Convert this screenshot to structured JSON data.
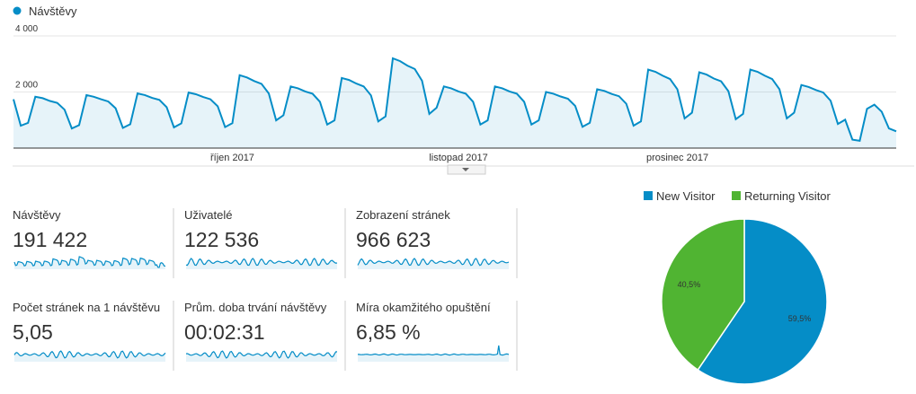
{
  "chart_data": [
    {
      "type": "line",
      "series": [
        {
          "name": "Návštěvy",
          "color": "#058dc7",
          "values": [
            1740,
            800,
            900,
            1830,
            1780,
            1680,
            1610,
            1370,
            700,
            820,
            1890,
            1830,
            1740,
            1660,
            1420,
            720,
            850,
            1950,
            1890,
            1790,
            1720,
            1460,
            740,
            880,
            1980,
            1920,
            1820,
            1740,
            1490,
            750,
            890,
            2600,
            2520,
            2390,
            2290,
            1950,
            990,
            1170,
            2200,
            2130,
            2020,
            1940,
            1650,
            840,
            990,
            2500,
            2430,
            2300,
            2200,
            1880,
            950,
            1130,
            3200,
            3100,
            2940,
            2820,
            2400,
            1220,
            1440,
            2200,
            2130,
            2020,
            1940,
            1650,
            840,
            990,
            2200,
            2130,
            2020,
            1940,
            1650,
            840,
            990,
            2000,
            1940,
            1840,
            1760,
            1500,
            760,
            900,
            2100,
            2040,
            1930,
            1850,
            1580,
            800,
            950,
            2800,
            2720,
            2580,
            2460,
            2100,
            1060,
            1260,
            2700,
            2620,
            2480,
            2380,
            2030,
            1030,
            1220,
            2800,
            2720,
            2580,
            2460,
            2100,
            1060,
            1260,
            2250,
            2180,
            2070,
            1980,
            1690,
            860,
            1010,
            300,
            260,
            1400,
            1550,
            1300,
            700,
            600
          ]
        }
      ],
      "categories": [
        null,
        null,
        null,
        null,
        null,
        null,
        null,
        null,
        null,
        null,
        null,
        null,
        null,
        null,
        null,
        null,
        null,
        null,
        null,
        null,
        null,
        null,
        null,
        null,
        null,
        null,
        null,
        null,
        null,
        null,
        "říjen 2017",
        null,
        null,
        null,
        null,
        null,
        null,
        null,
        null,
        null,
        null,
        null,
        null,
        null,
        null,
        null,
        null,
        null,
        null,
        null,
        null,
        null,
        null,
        null,
        null,
        null,
        null,
        null,
        null,
        null,
        null,
        "listopad 2017",
        null,
        null,
        null,
        null,
        null,
        null,
        null,
        null,
        null,
        null,
        null,
        null,
        null,
        null,
        null,
        null,
        null,
        null,
        null,
        null,
        null,
        null,
        null,
        null,
        null,
        null,
        null,
        null,
        null,
        "prosinec 2017",
        null,
        null,
        null,
        null,
        null,
        null,
        null,
        null,
        null,
        null,
        null,
        null,
        null,
        null,
        null,
        null,
        null,
        null,
        null,
        null,
        null,
        null,
        null,
        null,
        null,
        null,
        null,
        null,
        null,
        null
      ],
      "ylim": [
        0,
        4000
      ],
      "yticks": [
        {
          "value": 2000,
          "label": "2 000"
        },
        {
          "value": 4000,
          "label": "4 000"
        }
      ],
      "grid": true
    },
    {
      "type": "pie",
      "categories": [
        "New Visitor",
        "Returning Visitor"
      ],
      "values": [
        59.5,
        40.5
      ],
      "value_labels": [
        "59,5%",
        "40,5%"
      ],
      "colors": [
        "#058dc7",
        "#50b432"
      ]
    }
  ],
  "metrics": [
    {
      "name": "Návštěvy",
      "value": "191 422"
    },
    {
      "name": "Uživatelé",
      "value": "122 536"
    },
    {
      "name": "Zobrazení stránek",
      "value": "966 623"
    },
    {
      "name": "Počet stránek na 1 návštěvu",
      "value": "5,05"
    },
    {
      "name": "Prům. doba trvání návštěvy",
      "value": "00:02:31"
    },
    {
      "name": "Míra okamžitého opuštění",
      "value": "6,85 %"
    }
  ]
}
